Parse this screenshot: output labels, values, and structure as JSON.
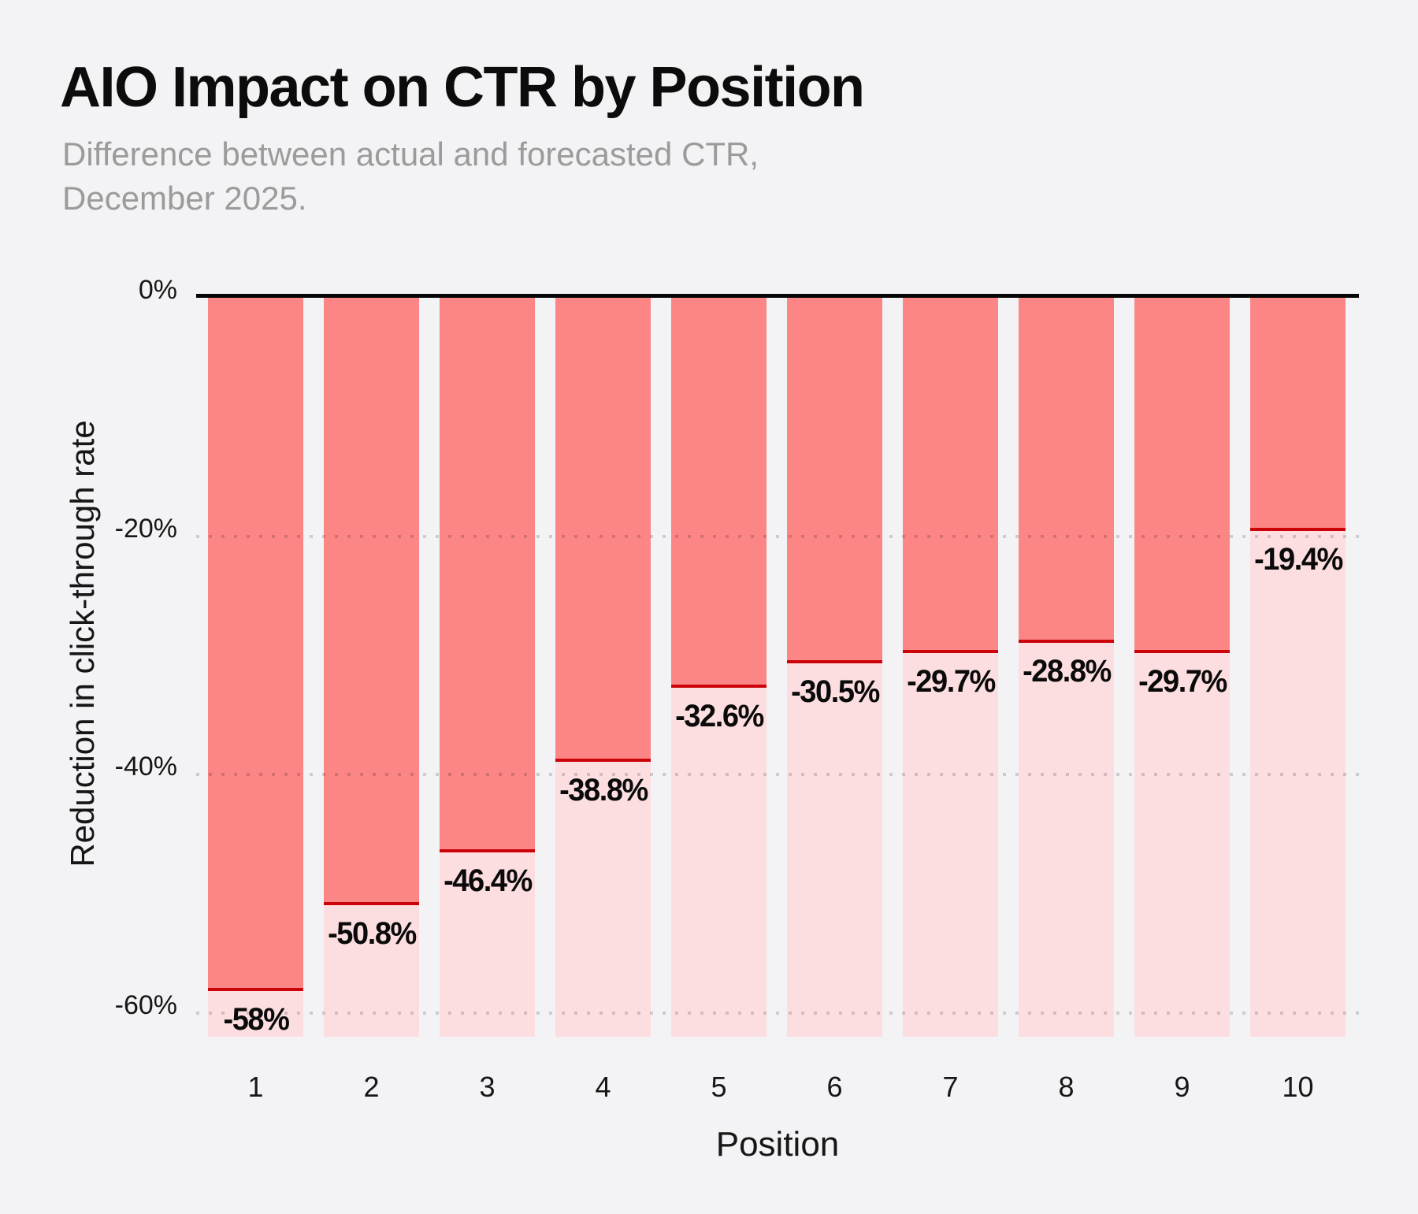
{
  "header": {
    "title": "AIO Impact on CTR by Position",
    "subtitle": "Difference between actual and forecasted CTR,\nDecember 2025."
  },
  "chart_data": {
    "type": "bar",
    "title": "AIO Impact on CTR by Position",
    "subtitle": "Difference between actual and forecasted CTR, December 2025.",
    "xlabel": "Position",
    "ylabel": "Reduction in click-through rate",
    "categories": [
      "1",
      "2",
      "3",
      "4",
      "5",
      "6",
      "7",
      "8",
      "9",
      "10"
    ],
    "values": [
      -58,
      -50.8,
      -46.4,
      -38.8,
      -32.6,
      -30.5,
      -29.7,
      -28.8,
      -29.7,
      -19.4
    ],
    "value_labels": [
      "-58%",
      "-50.8%",
      "-46.4%",
      "-38.8%",
      "-32.6%",
      "-30.5%",
      "-29.7%",
      "-28.8%",
      "-29.7%",
      "-19.4%"
    ],
    "y_tick_labels": [
      "0%",
      "-20%",
      "-40%",
      "-60%"
    ],
    "y_tick_values": [
      0,
      -20,
      -40,
      -60
    ],
    "ylim": [
      -62,
      0
    ],
    "grid": "horizontal-dotted",
    "legend": "none",
    "colors": {
      "bar_actual_drop": "#FC8585",
      "bar_forecast_remainder": "#FCDEE0",
      "value_marker_line": "#CB0309",
      "zero_axis_line": "#060606",
      "background": "#F3F3F5",
      "title_text": "#0C0C0C",
      "subtitle_text": "#9B9B9B"
    }
  }
}
